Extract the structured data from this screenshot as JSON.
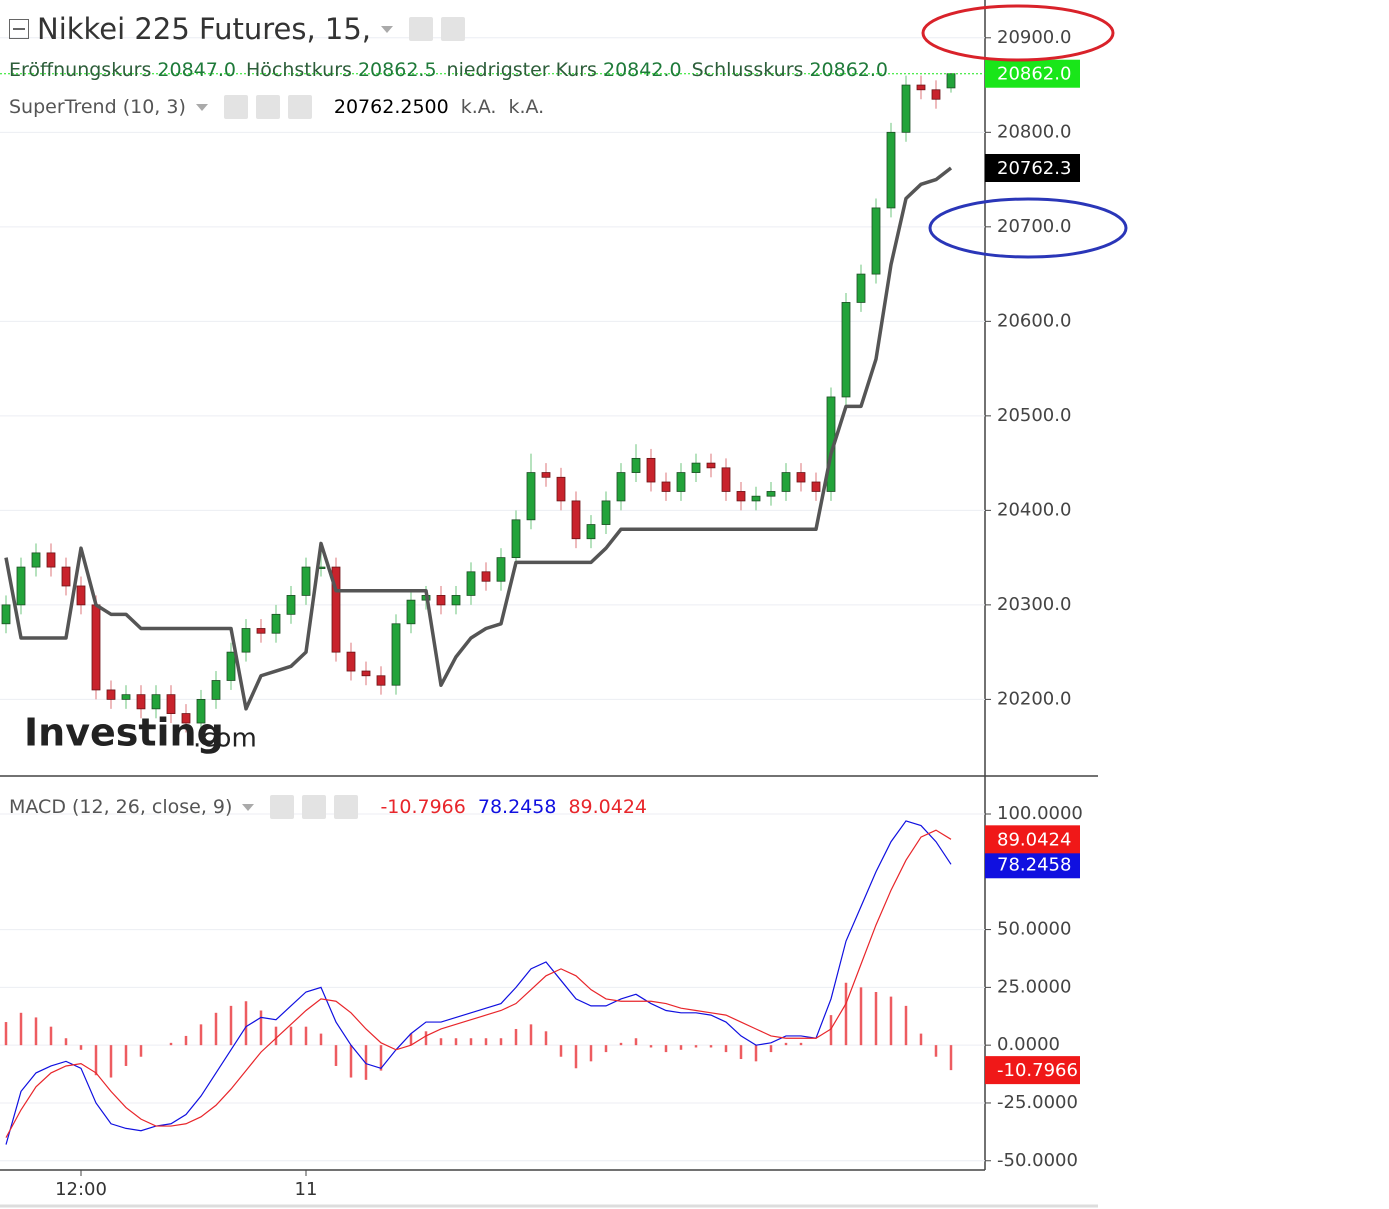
{
  "chart_data": [
    {
      "type": "candlestick",
      "title": "Nikkei 225 Futures, 15,",
      "ohlc_legend": [
        {
          "name": "Eröffnungskurs",
          "value_label": "20847.0"
        },
        {
          "name": "Höchstkurs",
          "value_label": "20862.5"
        },
        {
          "name": "niedrigster Kurs",
          "value_label": "20842.0"
        },
        {
          "name": "Schlusskurs",
          "value_label": "20862.0"
        }
      ],
      "open": [
        20280,
        20300,
        20340,
        20355,
        20340,
        20320,
        20300,
        20210,
        20200,
        20205,
        20190,
        20205,
        20185,
        20175,
        20200,
        20220,
        20250,
        20275,
        20270,
        20290,
        20310,
        20340,
        20340,
        20250,
        20230,
        20225,
        20215,
        20280,
        20305,
        20310,
        20300,
        20310,
        20335,
        20325,
        20350,
        20390,
        20440,
        20435,
        20410,
        20370,
        20385,
        20410,
        20440,
        20455,
        20430,
        20420,
        20440,
        20450,
        20445,
        20420,
        20410,
        20415,
        20420,
        20440,
        20430,
        20420,
        20520,
        20620,
        20650,
        20720,
        20800,
        20850,
        20845,
        20847
      ],
      "high": [
        20310,
        20350,
        20365,
        20365,
        20350,
        20330,
        20310,
        20220,
        20215,
        20215,
        20215,
        20215,
        20195,
        20210,
        20230,
        20260,
        20285,
        20285,
        20300,
        20320,
        20350,
        20360,
        20350,
        20260,
        20240,
        20235,
        20290,
        20315,
        20320,
        20320,
        20320,
        20345,
        20345,
        20360,
        20400,
        20460,
        20450,
        20445,
        20420,
        20395,
        20420,
        20450,
        20470,
        20465,
        20440,
        20450,
        20460,
        20460,
        20455,
        20430,
        20425,
        20430,
        20450,
        20450,
        20440,
        20530,
        20630,
        20660,
        20730,
        20810,
        20860,
        20860,
        20855,
        20862.5
      ],
      "low": [
        20270,
        20290,
        20330,
        20330,
        20310,
        20290,
        20200,
        20190,
        20190,
        20180,
        20180,
        20175,
        20165,
        20165,
        20190,
        20210,
        20240,
        20260,
        20260,
        20280,
        20300,
        20330,
        20240,
        20220,
        20215,
        20205,
        20205,
        20270,
        20295,
        20290,
        20290,
        20300,
        20315,
        20315,
        20340,
        20380,
        20425,
        20400,
        20360,
        20360,
        20375,
        20400,
        20430,
        20420,
        20410,
        20410,
        20430,
        20435,
        20410,
        20400,
        20400,
        20405,
        20410,
        20420,
        20410,
        20410,
        20510,
        20610,
        20640,
        20710,
        20790,
        20835,
        20825,
        20842
      ],
      "close": [
        20300,
        20340,
        20355,
        20340,
        20320,
        20300,
        20210,
        20200,
        20205,
        20190,
        20205,
        20185,
        20175,
        20200,
        20220,
        20250,
        20275,
        20270,
        20290,
        20310,
        20340,
        20340,
        20250,
        20230,
        20225,
        20215,
        20280,
        20305,
        20310,
        20300,
        20310,
        20335,
        20325,
        20350,
        20390,
        20440,
        20435,
        20410,
        20370,
        20385,
        20410,
        20440,
        20455,
        20430,
        20420,
        20440,
        20450,
        20445,
        20420,
        20410,
        20415,
        20420,
        20440,
        20430,
        20420,
        20520,
        20620,
        20650,
        20720,
        20800,
        20850,
        20845,
        20835,
        20862
      ],
      "colors": {
        "up": "#22a33a",
        "down": "#c8232c",
        "last": "#19e619"
      },
      "overlay": {
        "name": "SuperTrend (10, 3)",
        "legend_values": [
          "20762.2500",
          "k.A.",
          "k.A."
        ],
        "values": [
          20350,
          20265,
          20265,
          20265,
          20265,
          20360,
          20300,
          20290,
          20290,
          20275,
          20275,
          20275,
          20275,
          20275,
          20275,
          20275,
          20190,
          20225,
          20230,
          20235,
          20250,
          20365,
          20315,
          20315,
          20315,
          20315,
          20315,
          20315,
          20315,
          20215,
          20245,
          20265,
          20275,
          20280,
          20345,
          20345,
          20345,
          20345,
          20345,
          20345,
          20360,
          20380,
          20380,
          20380,
          20380,
          20380,
          20380,
          20380,
          20380,
          20380,
          20380,
          20380,
          20380,
          20380,
          20380,
          20460,
          20510,
          20510,
          20560,
          20660,
          20730,
          20745,
          20750,
          20762.25
        ],
        "color": "#555555",
        "last_label": "20762.3"
      },
      "ylim": [
        20120,
        20940
      ],
      "yticks": [
        {
          "value": 20200,
          "label": "20200.0"
        },
        {
          "value": 20300,
          "label": "20300.0"
        },
        {
          "value": 20400,
          "label": "20400.0"
        },
        {
          "value": 20500,
          "label": "20500.0"
        },
        {
          "value": 20600,
          "label": "20600.0"
        },
        {
          "value": 20700,
          "label": "20700.0"
        },
        {
          "value": 20800,
          "label": "20800.0"
        },
        {
          "value": 20900,
          "label": "20900.0"
        }
      ],
      "grid": true,
      "watermark": [
        "Investing",
        ".com"
      ]
    },
    {
      "type": "macd",
      "title": "MACD (12, 26, close, 9)",
      "categories": [
        null,
        null,
        null,
        null,
        null,
        "12:00",
        null,
        null,
        null,
        null,
        null,
        null,
        null,
        null,
        null,
        null,
        null,
        null,
        null,
        null,
        "11",
        null,
        null,
        null,
        null,
        null,
        null,
        null,
        null,
        null,
        null,
        null,
        null,
        null,
        null,
        null,
        null,
        null,
        null,
        null,
        null,
        null,
        null,
        null,
        null,
        null,
        null,
        null,
        null,
        null,
        null,
        null,
        null,
        null,
        null,
        null,
        null,
        null,
        null,
        null,
        null,
        null,
        null,
        null
      ],
      "series": [
        {
          "type": "histogram",
          "color": "#e8262b",
          "value_label": "-10.7966",
          "values": [
            10,
            14,
            12,
            8,
            3,
            -2,
            -13,
            -14,
            -9,
            -5,
            0,
            1,
            4,
            9,
            14,
            17,
            19,
            15,
            8,
            8,
            8,
            5,
            -9,
            -14,
            -15,
            -11,
            0,
            5,
            6,
            3,
            3,
            3,
            3,
            3,
            7,
            9,
            6,
            -5,
            -10,
            -7,
            -3,
            1,
            3,
            -1,
            -3,
            -2,
            -1,
            -1,
            -3,
            -6,
            -7,
            -3,
            1,
            1,
            0,
            13,
            27,
            25,
            23,
            21,
            17,
            5,
            -5,
            -10.7966
          ]
        },
        {
          "type": "line",
          "color": "#1010e0",
          "value_label": "78.2458",
          "values": [
            -43,
            -20,
            -12,
            -9,
            -7,
            -10,
            -25,
            -34,
            -36,
            -37,
            -35,
            -34,
            -30,
            -22,
            -12,
            -2,
            8,
            12,
            11,
            17,
            23,
            25,
            10,
            0,
            -8,
            -10,
            -2,
            5,
            10,
            10,
            12,
            14,
            16,
            18,
            25,
            33,
            36,
            28,
            20,
            17,
            17,
            20,
            22,
            18,
            15,
            14,
            14,
            13,
            10,
            4,
            0,
            1,
            4,
            4,
            3,
            20,
            45,
            60,
            75,
            88,
            97,
            95,
            88,
            78.2458
          ]
        },
        {
          "type": "line",
          "color": "#e8262b",
          "value_label": "89.0424",
          "values": [
            -40,
            -28,
            -18,
            -12,
            -9,
            -8,
            -12,
            -20,
            -27,
            -32,
            -35,
            -35,
            -34,
            -31,
            -26,
            -19,
            -11,
            -3,
            3,
            9,
            15,
            20,
            19,
            14,
            7,
            1,
            -2,
            0,
            4,
            7,
            9,
            11,
            13,
            15,
            18,
            24,
            30,
            33,
            30,
            24,
            20,
            19,
            19,
            19,
            18,
            16,
            15,
            14,
            13,
            10,
            7,
            4,
            3,
            3,
            3,
            7,
            18,
            35,
            52,
            67,
            80,
            90,
            93,
            89.0424
          ]
        }
      ],
      "ylim": [
        -54,
        116
      ],
      "yticks": [
        {
          "value": -50,
          "label": "-50.0000"
        },
        {
          "value": -25,
          "label": "-25.0000"
        },
        {
          "value": 0,
          "label": "0.0000"
        },
        {
          "value": 25,
          "label": "25.0000"
        },
        {
          "value": 50,
          "label": "50.0000"
        },
        {
          "value": 100,
          "label": "100.0000"
        }
      ],
      "grid": true
    }
  ]
}
